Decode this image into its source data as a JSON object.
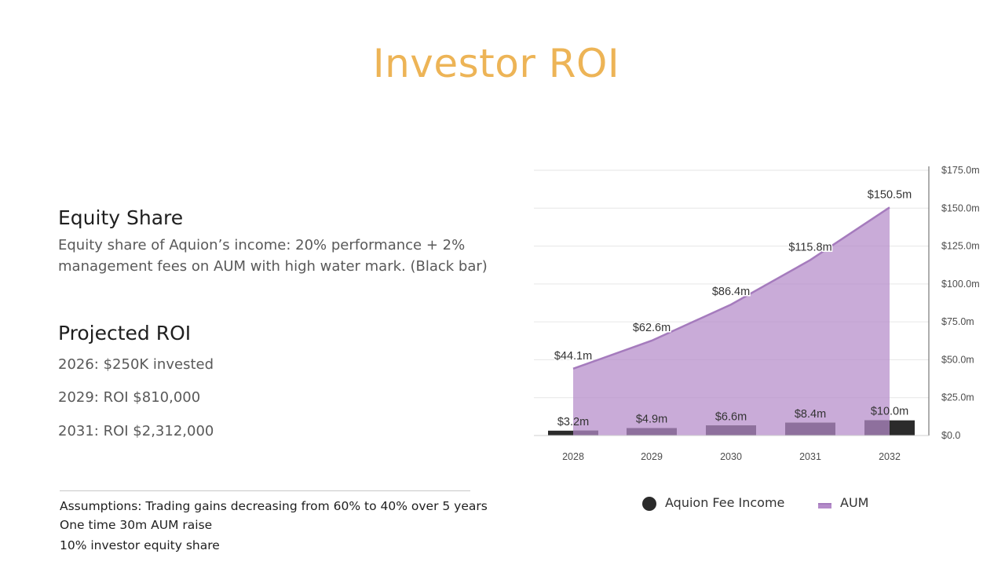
{
  "slide": {
    "title": "Investor ROI",
    "equity": {
      "heading": "Equity Share",
      "body": "Equity share of Aquion’s income: 20% performance + 2% management fees on AUM with high water mark. (Black bar)"
    },
    "roi": {
      "heading": "Projected ROI",
      "lines": [
        "2026: $250K invested",
        "2029: ROI $810,000",
        "2031: ROI $2,312,000"
      ]
    },
    "assumptions": [
      "Assumptions: Trading gains decreasing from 60% to 40% over 5 years",
      "One time 30m AUM raise",
      "10% investor equity share"
    ]
  },
  "chart_data": {
    "type": "bar",
    "categories": [
      "2028",
      "2029",
      "2030",
      "2031",
      "2032"
    ],
    "series": [
      {
        "name": "Aquion Fee Income",
        "type": "bar",
        "color": "#2b2b2b",
        "values": [
          3.2,
          4.9,
          6.6,
          8.4,
          10.0
        ],
        "labels": [
          "$3.2m",
          "$4.9m",
          "$6.6m",
          "$8.4m",
          "$10.0m"
        ]
      },
      {
        "name": "AUM",
        "type": "area",
        "color": "#b48bc9",
        "values": [
          44.1,
          62.6,
          86.4,
          115.8,
          150.5
        ],
        "labels": [
          "$44.1m",
          "$62.6m",
          "$86.4m",
          "$115.8m",
          "$150.5m"
        ]
      }
    ],
    "y_axis": {
      "position": "right",
      "min": 0,
      "max": 175,
      "ticks": [
        0,
        25,
        50,
        75,
        100,
        125,
        150,
        175
      ],
      "tick_labels": [
        "$0.0",
        "$25.0m",
        "$50.0m",
        "$75.0m",
        "$100.0m",
        "$125.0m",
        "$150.0m",
        "$175.0m"
      ]
    },
    "grid": true,
    "legend_position": "bottom"
  }
}
